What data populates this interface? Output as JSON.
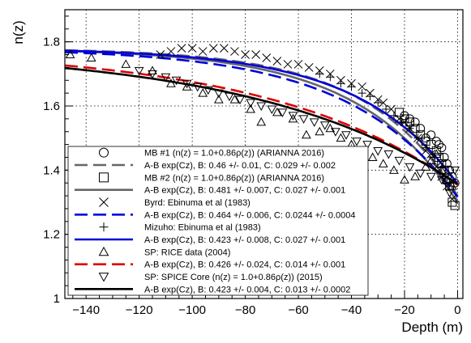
{
  "chart_data": {
    "type": "scatter",
    "xlabel": "Depth (m)",
    "ylabel": "n(z)",
    "xlim": [
      -148,
      2
    ],
    "ylim": [
      1.0,
      1.9
    ],
    "x_ticks": [
      -140,
      -120,
      -100,
      -80,
      -60,
      -40,
      -20,
      0
    ],
    "y_ticks": [
      1.0,
      1.2,
      1.4,
      1.6,
      1.8
    ],
    "x_tick_labels": [
      "−140",
      "−120",
      "−100",
      "−80",
      "−60",
      "−40",
      "−20",
      "0"
    ],
    "y_tick_labels": [
      "1",
      "1.2",
      "1.4",
      "1.6",
      "1.8"
    ],
    "grid": true,
    "legend_position": "bottom-left",
    "legend": [
      {
        "label": "MB #1 (n(z) = 1.0+0.86ρ(z)) (ARIANNA 2016)",
        "marker": "circle",
        "color": "#000000"
      },
      {
        "label": "A-B exp(Cz), B: 0.46 +/- 0.01, C: 0.029 +/- 0.002",
        "line": "dashed",
        "color": "#666666"
      },
      {
        "label": "MB #2 (n(z) = 1.0+0.86ρ(z)) (ARIANNA 2016)",
        "marker": "square",
        "color": "#000000"
      },
      {
        "label": "A-B exp(Cz), B: 0.481 +/- 0.007, C: 0.027 +/- 0.001",
        "line": "solid",
        "color": "#666666"
      },
      {
        "label": "Byrd: Ebinuma et al (1983)",
        "marker": "cross",
        "color": "#000000"
      },
      {
        "label": "A-B exp(Cz), B: 0.464 +/- 0.006, C: 0.0244 +/- 0.0004",
        "line": "dashed",
        "color": "#0000dd"
      },
      {
        "label": "Mizuho: Ebinuma et al (1983)",
        "marker": "plus",
        "color": "#000000"
      },
      {
        "label": "A-B exp(Cz), B: 0.423 +/- 0.008, C: 0.027 +/- 0.001",
        "line": "solid",
        "color": "#0000dd"
      },
      {
        "label": "SP: RICE data (2004)",
        "marker": "triangle-up",
        "color": "#000000"
      },
      {
        "label": "A-B exp(Cz), B: 0.426 +/- 0.024, C: 0.014 +/- 0.001",
        "line": "dashed",
        "color": "#dd0000"
      },
      {
        "label": "SP: SPICE Core (n(z) = 1.0+0.86ρ(z)) (2015)",
        "marker": "triangle-down",
        "color": "#000000"
      },
      {
        "label": "A-B exp(Cz), B: 0.423 +/- 0.004, C: 0.013 +/- 0.0002",
        "line": "solid",
        "color": "#000000"
      }
    ],
    "fits": [
      {
        "A": 1.78,
        "B": 0.46,
        "C": 0.029,
        "style": "dashed",
        "color": "#666666"
      },
      {
        "A": 1.78,
        "B": 0.481,
        "C": 0.027,
        "style": "solid",
        "color": "#666666"
      },
      {
        "A": 1.78,
        "B": 0.464,
        "C": 0.0244,
        "style": "dashed",
        "color": "#0000dd"
      },
      {
        "A": 1.78,
        "B": 0.423,
        "C": 0.027,
        "style": "solid",
        "color": "#0000dd"
      },
      {
        "A": 1.78,
        "B": 0.426,
        "C": 0.014,
        "style": "dashed",
        "color": "#dd0000"
      },
      {
        "A": 1.78,
        "B": 0.423,
        "C": 0.013,
        "style": "solid",
        "color": "#000000"
      }
    ],
    "series": [
      {
        "name": "MB #1 (n(z) = 1.0+0.86ρ(z)) (ARIANNA 2016)",
        "marker": "circle",
        "points": [
          [
            -1,
            1.36
          ],
          [
            -2,
            1.38
          ],
          [
            -3,
            1.4
          ],
          [
            -4,
            1.42
          ],
          [
            -5,
            1.44
          ],
          [
            -6,
            1.47
          ],
          [
            -7,
            1.48
          ],
          [
            -8,
            1.49
          ],
          [
            -10,
            1.51
          ],
          [
            -12,
            1.5
          ],
          [
            -14,
            1.53
          ],
          [
            -16,
            1.55
          ],
          [
            -18,
            1.56
          ],
          [
            -20,
            1.57
          ]
        ]
      },
      {
        "name": "MB #2 (n(z) = 1.0+0.86ρ(z)) (ARIANNA 2016)",
        "marker": "square",
        "points": [
          [
            -1,
            1.29
          ],
          [
            -2,
            1.3
          ],
          [
            -3,
            1.35
          ],
          [
            -4,
            1.37
          ],
          [
            -5,
            1.4
          ],
          [
            -6,
            1.42
          ],
          [
            -7,
            1.44
          ],
          [
            -8,
            1.46
          ],
          [
            -10,
            1.48
          ],
          [
            -12,
            1.49
          ],
          [
            -14,
            1.51
          ],
          [
            -16,
            1.53
          ],
          [
            -18,
            1.55
          ],
          [
            -20,
            1.56
          ],
          [
            -22,
            1.58
          ]
        ]
      },
      {
        "name": "Byrd: Ebinuma et al (1983)",
        "marker": "cross",
        "points": [
          [
            -2,
            1.31
          ],
          [
            -4,
            1.35
          ],
          [
            -6,
            1.38
          ],
          [
            -8,
            1.41
          ],
          [
            -10,
            1.45
          ],
          [
            -12,
            1.46
          ],
          [
            -15,
            1.5
          ],
          [
            -18,
            1.53
          ],
          [
            -20,
            1.55
          ],
          [
            -22,
            1.56
          ],
          [
            -25,
            1.59
          ],
          [
            -28,
            1.61
          ],
          [
            -30,
            1.62
          ],
          [
            -33,
            1.64
          ],
          [
            -36,
            1.66
          ],
          [
            -40,
            1.67
          ],
          [
            -44,
            1.68
          ],
          [
            -48,
            1.7
          ],
          [
            -52,
            1.71
          ],
          [
            -56,
            1.72
          ],
          [
            -60,
            1.73
          ],
          [
            -64,
            1.73
          ],
          [
            -68,
            1.74
          ],
          [
            -72,
            1.75
          ],
          [
            -76,
            1.76
          ],
          [
            -80,
            1.76
          ],
          [
            -84,
            1.77
          ],
          [
            -88,
            1.78
          ],
          [
            -92,
            1.78
          ],
          [
            -96,
            1.77
          ],
          [
            -100,
            1.78
          ],
          [
            -104,
            1.78
          ],
          [
            -108,
            1.77
          ],
          [
            -112,
            1.76
          ]
        ]
      },
      {
        "name": "Mizuho: Ebinuma et al (1983)",
        "marker": "plus",
        "points": [
          [
            -3,
            1.36
          ],
          [
            -6,
            1.41
          ],
          [
            -9,
            1.44
          ],
          [
            -12,
            1.47
          ],
          [
            -15,
            1.5
          ],
          [
            -18,
            1.53
          ],
          [
            -21,
            1.55
          ],
          [
            -24,
            1.57
          ],
          [
            -27,
            1.59
          ],
          [
            -30,
            1.61
          ],
          [
            -33,
            1.63
          ],
          [
            -36,
            1.64
          ],
          [
            -40,
            1.66
          ],
          [
            -44,
            1.67
          ],
          [
            -48,
            1.69
          ],
          [
            -52,
            1.7
          ]
        ]
      },
      {
        "name": "SP: RICE data (2004)",
        "marker": "triangle-up",
        "points": [
          [
            -146,
            1.76
          ],
          [
            -138,
            1.75
          ],
          [
            -125,
            1.73
          ],
          [
            -115,
            1.71
          ],
          [
            -108,
            1.67
          ],
          [
            -102,
            1.66
          ],
          [
            -96,
            1.64
          ],
          [
            -90,
            1.62
          ],
          [
            -84,
            1.62
          ],
          [
            -78,
            1.59
          ],
          [
            -74,
            1.55
          ],
          [
            -68,
            1.58
          ],
          [
            -62,
            1.56
          ],
          [
            -57,
            1.51
          ],
          [
            -52,
            1.52
          ],
          [
            -48,
            1.53
          ],
          [
            -44,
            1.5
          ],
          [
            -40,
            1.48
          ],
          [
            -36,
            1.46
          ],
          [
            -32,
            1.44
          ],
          [
            -28,
            1.42
          ],
          [
            -24,
            1.4
          ],
          [
            -20,
            1.37
          ],
          [
            -16,
            1.38
          ],
          [
            -12,
            1.41
          ],
          [
            -10,
            1.43
          ],
          [
            -8,
            1.45
          ],
          [
            -6,
            1.4
          ],
          [
            -4,
            1.37
          ],
          [
            -2,
            1.35
          ]
        ]
      },
      {
        "name": "SP: SPICE Core (n(z) = 1.0+0.86ρ(z)) (2015)",
        "marker": "triangle-down",
        "points": [
          [
            -120,
            1.71
          ],
          [
            -115,
            1.7
          ],
          [
            -110,
            1.69
          ],
          [
            -106,
            1.68
          ],
          [
            -102,
            1.67
          ],
          [
            -98,
            1.66
          ],
          [
            -94,
            1.65
          ],
          [
            -90,
            1.64
          ],
          [
            -86,
            1.63
          ],
          [
            -82,
            1.62
          ],
          [
            -78,
            1.61
          ],
          [
            -74,
            1.6
          ],
          [
            -70,
            1.59
          ],
          [
            -66,
            1.58
          ],
          [
            -62,
            1.57
          ],
          [
            -58,
            1.56
          ],
          [
            -54,
            1.55
          ],
          [
            -50,
            1.54
          ],
          [
            -46,
            1.52
          ],
          [
            -42,
            1.51
          ],
          [
            -38,
            1.49
          ],
          [
            -34,
            1.48
          ],
          [
            -30,
            1.46
          ],
          [
            -26,
            1.45
          ],
          [
            -22,
            1.43
          ],
          [
            -18,
            1.41
          ],
          [
            -14,
            1.39
          ],
          [
            -10,
            1.38
          ],
          [
            -6,
            1.37
          ],
          [
            -3,
            1.33
          ],
          [
            -1,
            1.4
          ]
        ]
      }
    ]
  }
}
